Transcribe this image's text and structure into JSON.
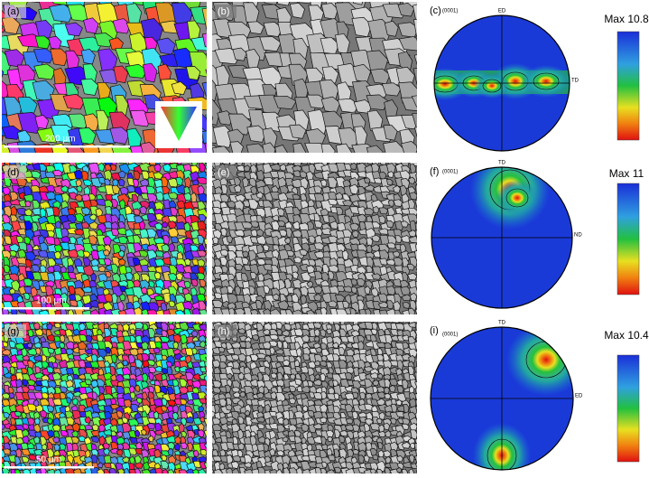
{
  "panels": [
    {
      "label": "(a)",
      "scale_bar": "200 μm"
    },
    {
      "label": "(b)"
    },
    {
      "label": "(c)",
      "projection": "(0001)",
      "top_axis": "ED",
      "right_axis": "TD",
      "max": "Max 10.8"
    },
    {
      "label": "(d)",
      "scale_bar": "100 μm"
    },
    {
      "label": "(e)"
    },
    {
      "label": "(f)",
      "projection": "(0001)",
      "top_axis": "TD",
      "right_axis": "ND",
      "max": "Max 11"
    },
    {
      "label": "(g)",
      "scale_bar": "50 μm"
    },
    {
      "label": "(h)"
    },
    {
      "label": "(i)",
      "projection": "(0001)",
      "top_axis": "TD",
      "right_axis": "ED",
      "max": "Max 10.4"
    }
  ]
}
